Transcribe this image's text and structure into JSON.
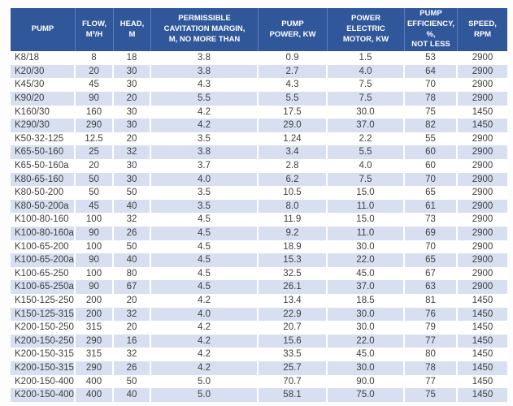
{
  "table": {
    "colors": {
      "header_bg": "#31579B",
      "header_text": "#FFFFFF",
      "stripe_bg": "#D7DFF1",
      "cell_text": "#3F3F3F"
    },
    "columns": [
      {
        "id": "pump",
        "label": "PUMP"
      },
      {
        "id": "flow",
        "label": "FLOW,\nM³/H"
      },
      {
        "id": "head",
        "label": "HEAD,\nM"
      },
      {
        "id": "cavitation",
        "label": "PERMISSIBLE\nCAVITATION MARGIN,\nM, NO MORE THAN"
      },
      {
        "id": "power",
        "label": "PUMP\nPOWER, KW"
      },
      {
        "id": "motor",
        "label": "POWER\nELECTRIC\nMOTOR, KW"
      },
      {
        "id": "efficiency",
        "label": "PUMP\nEFFICIENCY, %,\nNOT LESS"
      },
      {
        "id": "speed",
        "label": "SPEED,\nRPM"
      }
    ],
    "rows": [
      [
        "K8/18",
        "8",
        "18",
        "3.8",
        "0.9",
        "1.5",
        "53",
        "2900"
      ],
      [
        "K20/30",
        "20",
        "30",
        "3.8",
        "2.7",
        "4.0",
        "64",
        "2900"
      ],
      [
        "K45/30",
        "45",
        "30",
        "4.3",
        "4.3",
        "7.5",
        "70",
        "2900"
      ],
      [
        "K90/20",
        "90",
        "20",
        "5.5",
        "5.5",
        "7.5",
        "78",
        "2900"
      ],
      [
        "K160/30",
        "160",
        "30",
        "4.2",
        "17.5",
        "30.0",
        "75",
        "1450"
      ],
      [
        "K290/30",
        "290",
        "30",
        "4.2",
        "29.0",
        "37.0",
        "82",
        "1450"
      ],
      [
        "K50-32-125",
        "12.5",
        "20",
        "3.5",
        "1.24",
        "2.2",
        "55",
        "2900"
      ],
      [
        "K65-50-160",
        "25",
        "32",
        "3.8",
        "3.4",
        "5.5",
        "60",
        "2900"
      ],
      [
        "K65-50-160a",
        "20",
        "30",
        "3.7",
        "2.8",
        "4.0",
        "60",
        "2900"
      ],
      [
        "K80-65-160",
        "50",
        "30",
        "4.0",
        "6.2",
        "7.5",
        "70",
        "2900"
      ],
      [
        "K80-50-200",
        "50",
        "50",
        "3.5",
        "10.5",
        "15.0",
        "65",
        "2900"
      ],
      [
        "K80-50-200a",
        "45",
        "40",
        "3.5",
        "8.0",
        "11.0",
        "61",
        "2900"
      ],
      [
        "K100-80-160",
        "100",
        "32",
        "4.5",
        "11.9",
        "15.0",
        "73",
        "2900"
      ],
      [
        "K100-80-160a",
        "90",
        "26",
        "4.5",
        "9.2",
        "11.0",
        "69",
        "2900"
      ],
      [
        "K100-65-200",
        "100",
        "50",
        "4.5",
        "18.9",
        "30.0",
        "70",
        "2900"
      ],
      [
        "K100-65-200a",
        "90",
        "40",
        "4.5",
        "15.3",
        "22.0",
        "65",
        "2900"
      ],
      [
        "K100-65-250",
        "100",
        "80",
        "4.5",
        "32.5",
        "45.0",
        "67",
        "2900"
      ],
      [
        "K100-65-250a",
        "90",
        "67",
        "4.5",
        "26.1",
        "37.0",
        "63",
        "2900"
      ],
      [
        "K150-125-250",
        "200",
        "20",
        "4.2",
        "13.4",
        "18.5",
        "81",
        "1450"
      ],
      [
        "K150-125-315",
        "200",
        "32",
        "4.0",
        "22.9",
        "30.0",
        "76",
        "1450"
      ],
      [
        "K200-150-250",
        "315",
        "20",
        "4.2",
        "20.7",
        "30.0",
        "79",
        "1450"
      ],
      [
        "K200-150-250a",
        "290",
        "16",
        "4.2",
        "15.6",
        "22.0",
        "77",
        "1450"
      ],
      [
        "K200-150-315",
        "315",
        "32",
        "4.2",
        "33.5",
        "45.0",
        "80",
        "1450"
      ],
      [
        "K200-150-315a",
        "290",
        "26",
        "4.2",
        "25.7",
        "30.0",
        "78",
        "1450"
      ],
      [
        "K200-150-400",
        "400",
        "50",
        "5.0",
        "70.7",
        "90.0",
        "77",
        "1450"
      ],
      [
        "K200-150-400a",
        "400",
        "40",
        "5.0",
        "58.1",
        "75.0",
        "75",
        "1450"
      ]
    ]
  }
}
